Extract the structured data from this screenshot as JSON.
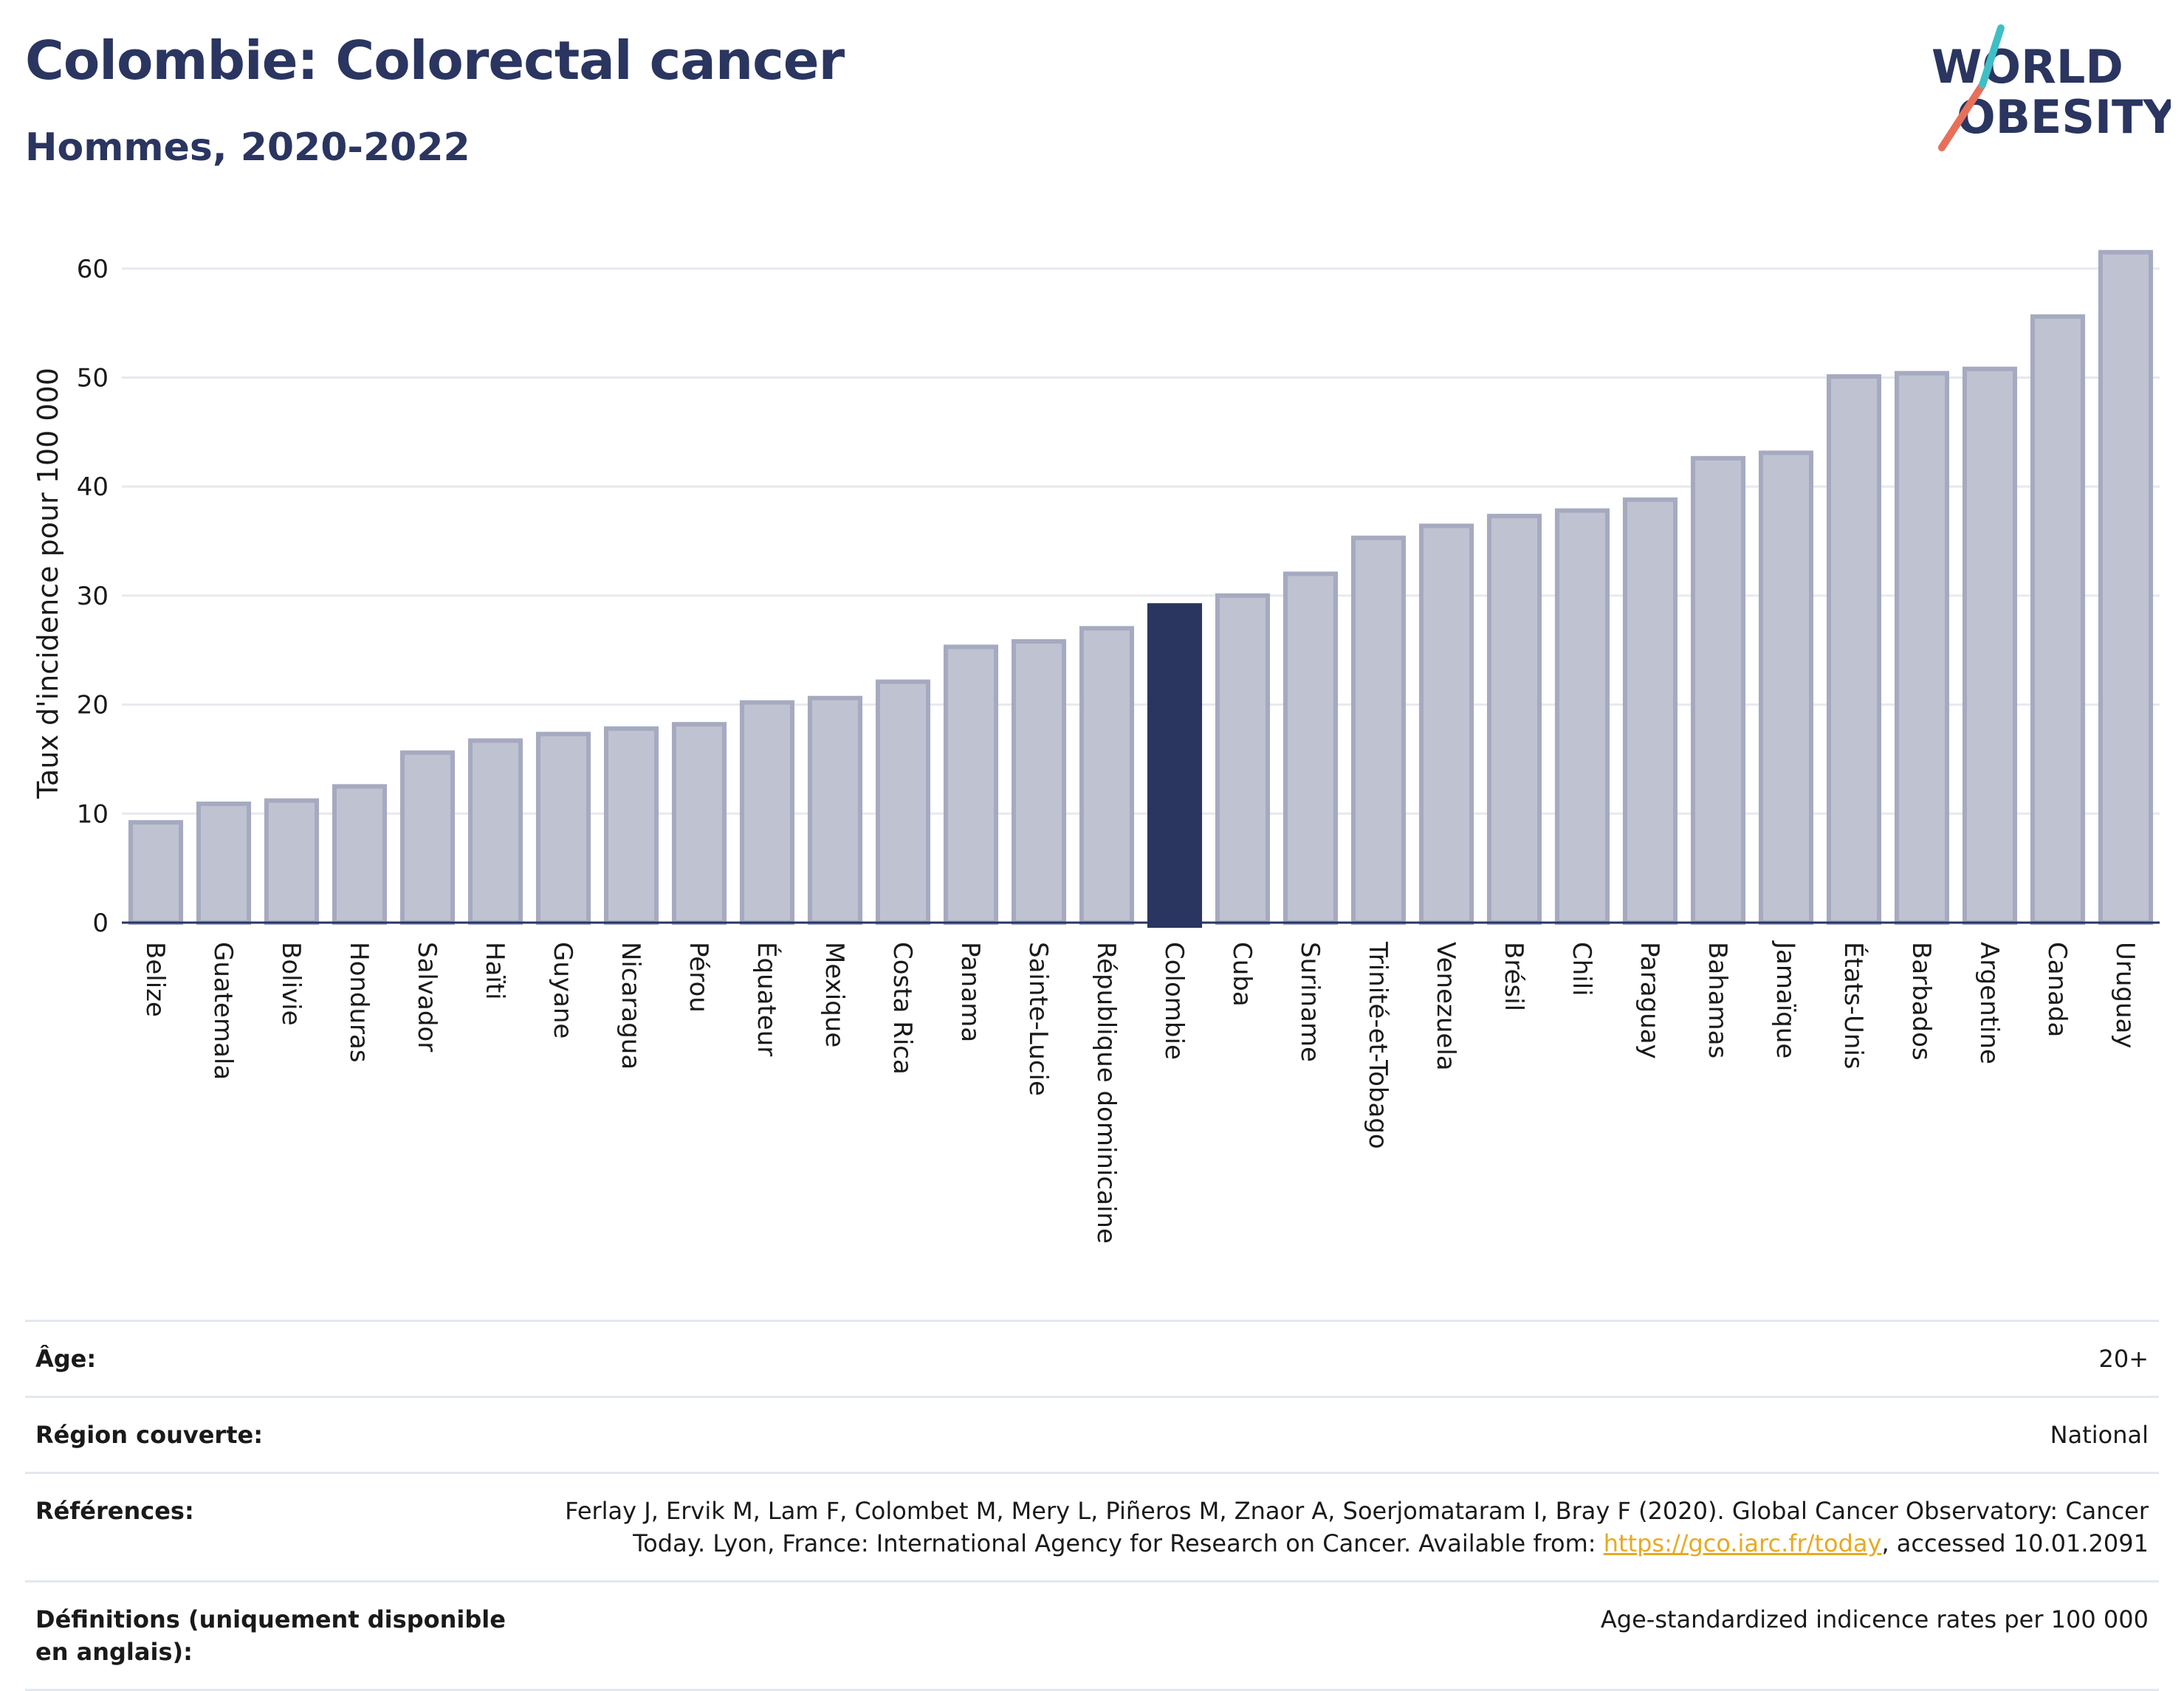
{
  "header": {
    "title": "Colombie: Colorectal cancer",
    "subtitle": "Hommes, 2020-2022"
  },
  "logo": {
    "line1": "WORLD",
    "line2": "OBESITY",
    "colors": {
      "text": "#2a3560",
      "slash_orange": "#e8705a",
      "slash_teal": "#3fbfc5"
    }
  },
  "chart_data": {
    "type": "bar",
    "categories": [
      "Belize",
      "Guatemala",
      "Bolivie",
      "Honduras",
      "Salvador",
      "Haïti",
      "Guyane",
      "Nicaragua",
      "Pérou",
      "Équateur",
      "Mexique",
      "Costa Rica",
      "Panama",
      "Sainte-Lucie",
      "République dominicaine",
      "Colombie",
      "Cuba",
      "Suriname",
      "Trinité-et-Tobago",
      "Venezuela",
      "Brésil",
      "Chili",
      "Paraguay",
      "Bahamas",
      "Jamaïque",
      "États-Unis",
      "Barbados",
      "Argentine",
      "Canada",
      "Uruguay"
    ],
    "values": [
      9.2,
      10.9,
      11.2,
      12.5,
      15.6,
      16.7,
      17.3,
      17.8,
      18.2,
      20.2,
      20.6,
      22.1,
      25.3,
      25.8,
      27.0,
      29.1,
      30.0,
      32.0,
      35.3,
      36.4,
      37.3,
      37.8,
      38.8,
      42.6,
      43.1,
      50.1,
      50.4,
      50.8,
      55.6,
      61.5
    ],
    "highlight": "Colombie",
    "ylabel": "Taux d'incidence pour 100 000",
    "xlabel": "",
    "ylim": [
      0,
      65
    ],
    "yticks": [
      0,
      10,
      20,
      30,
      40,
      50,
      60
    ],
    "grid": true,
    "colors": {
      "bar": "#bfc2d0",
      "bar_border": "#a6aac0",
      "highlight": "#2a3560",
      "grid": "#e6e9ee",
      "axis": "#2a3560"
    }
  },
  "meta": [
    {
      "label": "Âge:",
      "value": "20+"
    },
    {
      "label": "Région couverte:",
      "value": "National"
    },
    {
      "label": "Références:",
      "value_pre": "Ferlay J, Ervik M, Lam F, Colombet M, Mery L, Piñeros M, Znaor A, Soerjomataram I, Bray F (2020). Global Cancer Observatory: Cancer Today. Lyon, France: International Agency for Research on Cancer. Available from: ",
      "link": "https://gco.iarc.fr/today",
      "value_post": ", accessed 10.01.2091"
    },
    {
      "label": "Définitions (uniquement disponible en anglais):",
      "value": "Age-standardized indicence rates per 100 000"
    }
  ]
}
